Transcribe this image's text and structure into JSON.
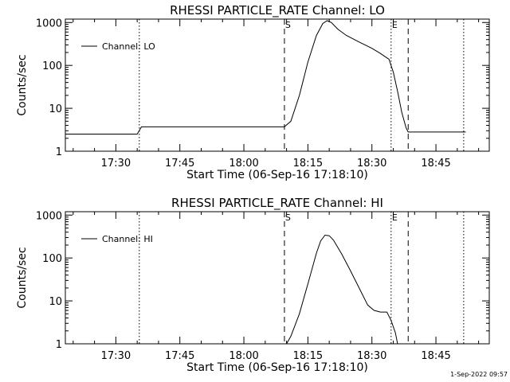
{
  "footer": {
    "timestamp": "1-Sep-2022 09:57"
  },
  "chart_data": [
    {
      "type": "line",
      "title": "RHESSI PARTICLE_RATE Channel: LO",
      "xlabel": "Start Time (06-Sep-16 17:18:10)",
      "ylabel": "Counts/sec",
      "yscale": "log",
      "xlim": [
        "17:18:10",
        "18:57:30"
      ],
      "ylim": [
        1,
        1200
      ],
      "x_ticks": [
        "17:30",
        "17:45",
        "18:00",
        "18:15",
        "18:30",
        "18:45"
      ],
      "y_ticks": [
        "1",
        "10",
        "100",
        "1000"
      ],
      "legend": "top-left",
      "marker_labels": {
        "start": "S",
        "end": "E"
      },
      "vlines": [
        {
          "time": "17:35:30",
          "style": "dotted"
        },
        {
          "time": "18:09:30",
          "style": "dashed"
        },
        {
          "time": "18:34:30",
          "style": "dotted"
        },
        {
          "time": "18:38:30",
          "style": "dashed"
        },
        {
          "time": "18:51:30",
          "style": "dotted"
        }
      ],
      "series": [
        {
          "name": "Channel: LO",
          "x": [
            "17:18:10",
            "17:35:00",
            "17:36:00",
            "18:09:30",
            "18:11:00",
            "18:13:00",
            "18:15:00",
            "18:17:00",
            "18:18:30",
            "18:19:30",
            "18:20:30",
            "18:22:00",
            "18:24:00",
            "18:27:00",
            "18:30:00",
            "18:32:00",
            "18:33:30",
            "18:34:00",
            "18:35:00",
            "18:36:00",
            "18:37:00",
            "18:38:00",
            "18:38:30",
            "18:52:00"
          ],
          "y": [
            2.5,
            2.5,
            3.7,
            3.7,
            5,
            20,
            120,
            500,
            950,
            1100,
            1000,
            700,
            500,
            350,
            250,
            190,
            150,
            140,
            70,
            25,
            8,
            3.5,
            2.8,
            2.8
          ]
        }
      ]
    },
    {
      "type": "line",
      "title": "RHESSI PARTICLE_RATE Channel: HI",
      "xlabel": "Start Time (06-Sep-16 17:18:10)",
      "ylabel": "Counts/sec",
      "yscale": "log",
      "xlim": [
        "17:18:10",
        "18:57:30"
      ],
      "ylim": [
        1,
        1200
      ],
      "x_ticks": [
        "17:30",
        "17:45",
        "18:00",
        "18:15",
        "18:30",
        "18:45"
      ],
      "y_ticks": [
        "1",
        "10",
        "100",
        "1000"
      ],
      "legend": "top-left",
      "marker_labels": {
        "start": "S",
        "end": "E"
      },
      "vlines": [
        {
          "time": "17:35:30",
          "style": "dotted"
        },
        {
          "time": "18:09:30",
          "style": "dashed"
        },
        {
          "time": "18:34:30",
          "style": "dotted"
        },
        {
          "time": "18:38:30",
          "style": "dashed"
        },
        {
          "time": "18:51:30",
          "style": "dotted"
        }
      ],
      "series": [
        {
          "name": "Channel: HI",
          "x": [
            "18:10:00",
            "18:11:00",
            "18:13:00",
            "18:15:00",
            "18:17:00",
            "18:18:00",
            "18:19:00",
            "18:20:00",
            "18:21:00",
            "18:23:00",
            "18:25:00",
            "18:27:00",
            "18:29:00",
            "18:30:30",
            "18:32:00",
            "18:33:30",
            "18:34:30",
            "18:35:30",
            "18:36:00"
          ],
          "y": [
            1,
            1.5,
            5,
            25,
            130,
            250,
            340,
            330,
            260,
            120,
            50,
            20,
            8,
            6,
            5.5,
            5.5,
            3.5,
            1.8,
            1
          ]
        }
      ]
    }
  ]
}
